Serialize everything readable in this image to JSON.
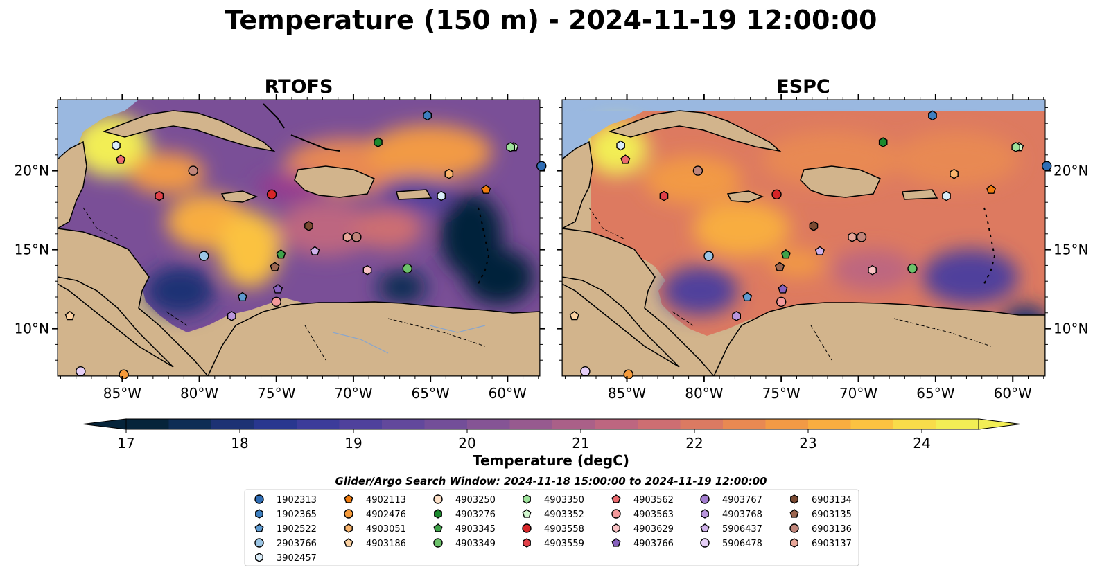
{
  "figure": {
    "title": "Temperature (150 m) - 2024-11-19 12:00:00"
  },
  "panels": [
    {
      "id": "rtofs",
      "title": "RTOFS"
    },
    {
      "id": "espc",
      "title": "ESPC"
    }
  ],
  "axes": {
    "lon_ticks": [
      "85°W",
      "80°W",
      "75°W",
      "70°W",
      "65°W",
      "60°W"
    ],
    "lat_ticks": [
      "20°N",
      "15°N",
      "10°N"
    ]
  },
  "colors": {
    "land": "#d2b48c",
    "shallow_water": "#9ab8e0",
    "deep_cold": "#07243a"
  },
  "colorbar": {
    "label": "Temperature (degC)",
    "ticks": [
      "17",
      "18",
      "19",
      "20",
      "21",
      "22",
      "23",
      "24"
    ],
    "min": 17,
    "max": 24.5,
    "extend": "both",
    "colors": [
      "#06243a",
      "#0e2d55",
      "#1d3274",
      "#29378f",
      "#3c3c9a",
      "#4f419c",
      "#62489c",
      "#734e99",
      "#855495",
      "#975a8f",
      "#aa6088",
      "#bd6680",
      "#cd6e72",
      "#db7a62",
      "#e88952",
      "#f29a45",
      "#f8ad40",
      "#fbc241",
      "#f8dc4a",
      "#f2ee55"
    ]
  },
  "legend": {
    "title": "Glider/Argo Search Window: 2024-11-18 15:00:00 to 2024-11-19 12:00:00",
    "columns": [
      [
        {
          "id": "1902313",
          "marker": "circle",
          "color": "#2f6db4"
        },
        {
          "id": "1902365",
          "marker": "hexagon",
          "color": "#3d7fc0"
        },
        {
          "id": "1902522",
          "marker": "pentagon",
          "color": "#5f9bd1"
        },
        {
          "id": "2903766",
          "marker": "circle",
          "color": "#9cc5e4"
        },
        {
          "id": "3902457",
          "marker": "hexagon",
          "color": "#d9ecf8"
        }
      ],
      [
        {
          "id": "4902113",
          "marker": "pentagon",
          "color": "#f07c10"
        },
        {
          "id": "4902476",
          "marker": "circle",
          "color": "#f59a3a"
        },
        {
          "id": "4903051",
          "marker": "hexagon",
          "color": "#f9b46c"
        },
        {
          "id": "4903186",
          "marker": "pentagon",
          "color": "#fcd2a2"
        }
      ],
      [
        {
          "id": "4903250",
          "marker": "circle",
          "color": "#fde1c9"
        },
        {
          "id": "4903276",
          "marker": "hexagon",
          "color": "#1c8a2e"
        },
        {
          "id": "4903345",
          "marker": "pentagon",
          "color": "#3fa249"
        },
        {
          "id": "4903349",
          "marker": "circle",
          "color": "#6cc26a"
        }
      ],
      [
        {
          "id": "4903350",
          "marker": "hexagon",
          "color": "#9ee29b"
        },
        {
          "id": "4903352",
          "marker": "pentagon",
          "color": "#d2f7cf"
        },
        {
          "id": "4903558",
          "marker": "circle",
          "color": "#d62528"
        },
        {
          "id": "4903559",
          "marker": "hexagon",
          "color": "#e04048"
        }
      ],
      [
        {
          "id": "4903562",
          "marker": "pentagon",
          "color": "#ea6a6e"
        },
        {
          "id": "4903563",
          "marker": "circle",
          "color": "#f3999b"
        },
        {
          "id": "4903629",
          "marker": "hexagon",
          "color": "#f9c2c4"
        },
        {
          "id": "4903766",
          "marker": "pentagon",
          "color": "#8761bd"
        }
      ],
      [
        {
          "id": "4903767",
          "marker": "circle",
          "color": "#a27ccf"
        },
        {
          "id": "4903768",
          "marker": "hexagon",
          "color": "#b995dc"
        },
        {
          "id": "5906437",
          "marker": "pentagon",
          "color": "#cfb1ea"
        },
        {
          "id": "5906478",
          "marker": "circle",
          "color": "#e6cff7"
        }
      ],
      [
        {
          "id": "6903134",
          "marker": "hexagon",
          "color": "#7a4a32"
        },
        {
          "id": "6903135",
          "marker": "pentagon",
          "color": "#9c6650"
        },
        {
          "id": "6903136",
          "marker": "circle",
          "color": "#c0857a"
        },
        {
          "id": "6903137",
          "marker": "hexagon",
          "color": "#e7a698"
        }
      ]
    ]
  },
  "floats": [
    {
      "id": "2903766",
      "lon": -79.7,
      "lat": 14.6
    },
    {
      "id": "1902522",
      "lon": -77.2,
      "lat": 12.0
    },
    {
      "id": "4903345",
      "lon": -74.7,
      "lat": 14.7
    },
    {
      "id": "6903135",
      "lon": -75.1,
      "lat": 13.9
    },
    {
      "id": "4903766",
      "lon": -74.9,
      "lat": 12.5
    },
    {
      "id": "4903563",
      "lon": -75.0,
      "lat": 11.7
    },
    {
      "id": "4903768",
      "lon": -77.9,
      "lat": 10.8
    },
    {
      "id": "4903558",
      "lon": -75.3,
      "lat": 18.5
    },
    {
      "id": "4903559",
      "lon": -82.6,
      "lat": 18.4
    },
    {
      "id": "4903562",
      "lon": -85.1,
      "lat": 20.7
    },
    {
      "id": "3902457",
      "lon": -85.4,
      "lat": 21.6
    },
    {
      "id": "6903136",
      "lon": -80.4,
      "lat": 20.0
    },
    {
      "id": "6903134",
      "lon": -72.9,
      "lat": 16.5
    },
    {
      "id": "6903137",
      "lon": -70.4,
      "lat": 15.8
    },
    {
      "id": "6903136",
      "lon": -69.8,
      "lat": 15.8
    },
    {
      "id": "5906437",
      "lon": -72.5,
      "lat": 14.9
    },
    {
      "id": "4903629",
      "lon": -69.1,
      "lat": 13.7
    },
    {
      "id": "4903349",
      "lon": -66.5,
      "lat": 13.8
    },
    {
      "id": "4903276",
      "lon": -68.4,
      "lat": 21.8
    },
    {
      "id": "1902365",
      "lon": -65.2,
      "lat": 23.5
    },
    {
      "id": "4903352",
      "lon": -59.6,
      "lat": 21.5
    },
    {
      "id": "4903350",
      "lon": -59.8,
      "lat": 21.5
    },
    {
      "id": "4903051",
      "lon": -63.8,
      "lat": 19.8
    },
    {
      "id": "4902113",
      "lon": -61.4,
      "lat": 18.8
    },
    {
      "id": "3902457",
      "lon": -64.3,
      "lat": 18.4
    },
    {
      "id": "1902313",
      "lon": -57.8,
      "lat": 20.3
    },
    {
      "id": "4903186",
      "lon": -88.4,
      "lat": 10.8
    },
    {
      "id": "5906478",
      "lon": -87.7,
      "lat": 7.3
    },
    {
      "id": "4902476",
      "lon": -84.9,
      "lat": 7.1
    }
  ]
}
